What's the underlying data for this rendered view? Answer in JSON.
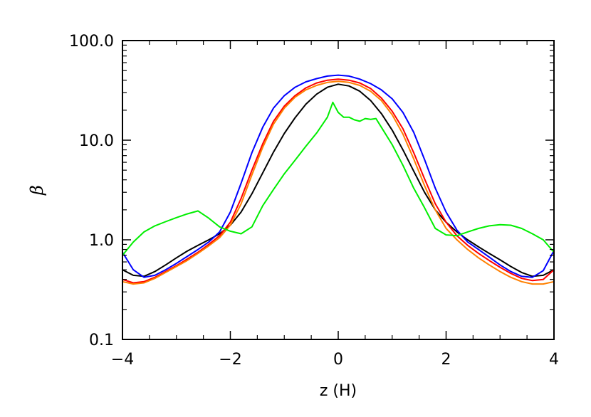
{
  "chart_data": {
    "type": "line",
    "xlabel": "z (H)",
    "ylabel": "β",
    "xlim": [
      -4,
      4
    ],
    "ylim": [
      0.1,
      100.0
    ],
    "y_scale": "log",
    "x_ticks": [
      -4,
      -2,
      0,
      2,
      4
    ],
    "x_tick_labels": [
      "−4",
      "−2",
      "0",
      "2",
      "4"
    ],
    "y_ticks": [
      0.1,
      1.0,
      10.0,
      100.0
    ],
    "y_tick_labels": [
      "0.1",
      "1.0",
      "10.0",
      "100.0"
    ],
    "grid": false,
    "series": [
      {
        "color": "#000000",
        "x": [
          -4.0,
          -3.8,
          -3.6,
          -3.4,
          -3.2,
          -3.0,
          -2.8,
          -2.6,
          -2.4,
          -2.2,
          -2.0,
          -1.8,
          -1.6,
          -1.4,
          -1.2,
          -1.0,
          -0.8,
          -0.6,
          -0.4,
          -0.2,
          0.0,
          0.2,
          0.4,
          0.6,
          0.8,
          1.0,
          1.2,
          1.4,
          1.6,
          1.8,
          2.0,
          2.2,
          2.4,
          2.6,
          2.8,
          3.0,
          3.2,
          3.4,
          3.6,
          3.8,
          4.0
        ],
        "y": [
          0.5,
          0.44,
          0.43,
          0.48,
          0.56,
          0.66,
          0.77,
          0.88,
          1.0,
          1.15,
          1.4,
          1.9,
          2.9,
          4.7,
          7.6,
          11.7,
          16.8,
          23.0,
          29.0,
          34.0,
          36.5,
          35.0,
          31.0,
          25.0,
          18.5,
          12.6,
          8.0,
          4.9,
          3.0,
          2.0,
          1.5,
          1.2,
          1.0,
          0.85,
          0.73,
          0.63,
          0.54,
          0.47,
          0.43,
          0.44,
          0.5
        ]
      },
      {
        "color": "#0000ff",
        "x": [
          -4.0,
          -3.8,
          -3.6,
          -3.4,
          -3.2,
          -3.0,
          -2.8,
          -2.6,
          -2.4,
          -2.2,
          -2.0,
          -1.8,
          -1.6,
          -1.4,
          -1.2,
          -1.0,
          -0.8,
          -0.6,
          -0.4,
          -0.2,
          0.0,
          0.2,
          0.4,
          0.6,
          0.8,
          1.0,
          1.2,
          1.4,
          1.6,
          1.8,
          2.0,
          2.2,
          2.4,
          2.6,
          2.8,
          3.0,
          3.2,
          3.4,
          3.6,
          3.8,
          4.0
        ],
        "y": [
          0.75,
          0.5,
          0.42,
          0.44,
          0.5,
          0.58,
          0.68,
          0.8,
          0.95,
          1.2,
          1.9,
          3.7,
          7.5,
          13.5,
          21.0,
          28.0,
          34.0,
          38.5,
          41.5,
          44.0,
          45.0,
          44.0,
          41.0,
          37.0,
          32.0,
          26.0,
          19.0,
          12.0,
          6.4,
          3.3,
          1.9,
          1.25,
          0.95,
          0.8,
          0.67,
          0.56,
          0.48,
          0.43,
          0.42,
          0.49,
          0.78
        ]
      },
      {
        "color": "#ff0000",
        "x": [
          -4.0,
          -3.8,
          -3.6,
          -3.4,
          -3.2,
          -3.0,
          -2.8,
          -2.6,
          -2.4,
          -2.2,
          -2.0,
          -1.8,
          -1.6,
          -1.4,
          -1.2,
          -1.0,
          -0.8,
          -0.6,
          -0.4,
          -0.2,
          0.0,
          0.2,
          0.4,
          0.6,
          0.8,
          1.0,
          1.2,
          1.4,
          1.6,
          1.8,
          2.0,
          2.2,
          2.4,
          2.6,
          2.8,
          3.0,
          3.2,
          3.4,
          3.6,
          3.8,
          4.0
        ],
        "y": [
          0.4,
          0.37,
          0.38,
          0.42,
          0.48,
          0.55,
          0.64,
          0.75,
          0.9,
          1.1,
          1.5,
          2.6,
          5.0,
          9.2,
          15.5,
          22.0,
          28.0,
          33.5,
          37.5,
          40.0,
          41.0,
          40.0,
          37.5,
          33.0,
          26.5,
          19.5,
          13.0,
          7.5,
          4.1,
          2.3,
          1.5,
          1.1,
          0.88,
          0.73,
          0.62,
          0.53,
          0.46,
          0.41,
          0.39,
          0.4,
          0.5
        ]
      },
      {
        "color": "#ff8000",
        "x": [
          -4.0,
          -3.8,
          -3.6,
          -3.4,
          -3.2,
          -3.0,
          -2.8,
          -2.6,
          -2.4,
          -2.2,
          -2.0,
          -1.8,
          -1.6,
          -1.4,
          -1.2,
          -1.0,
          -0.8,
          -0.6,
          -0.4,
          -0.2,
          0.0,
          0.2,
          0.4,
          0.6,
          0.8,
          1.0,
          1.2,
          1.4,
          1.6,
          1.8,
          2.0,
          2.2,
          2.4,
          2.6,
          2.8,
          3.0,
          3.2,
          3.4,
          3.6,
          3.8,
          4.0
        ],
        "y": [
          0.38,
          0.36,
          0.37,
          0.41,
          0.47,
          0.54,
          0.62,
          0.73,
          0.87,
          1.05,
          1.4,
          2.3,
          4.5,
          8.5,
          14.5,
          21.0,
          27.0,
          32.0,
          35.5,
          38.0,
          39.0,
          38.0,
          35.5,
          31.0,
          25.0,
          18.0,
          11.5,
          6.5,
          3.5,
          2.0,
          1.3,
          1.0,
          0.8,
          0.66,
          0.56,
          0.48,
          0.42,
          0.38,
          0.36,
          0.36,
          0.38
        ]
      },
      {
        "color": "#00ee00",
        "x": [
          -4.0,
          -3.8,
          -3.6,
          -3.4,
          -3.2,
          -3.0,
          -2.8,
          -2.6,
          -2.4,
          -2.2,
          -2.0,
          -1.8,
          -1.6,
          -1.4,
          -1.2,
          -1.0,
          -0.8,
          -0.6,
          -0.4,
          -0.2,
          -0.1,
          0.0,
          0.1,
          0.2,
          0.3,
          0.4,
          0.5,
          0.6,
          0.7,
          0.8,
          1.0,
          1.2,
          1.4,
          1.6,
          1.8,
          2.0,
          2.2,
          2.4,
          2.6,
          2.8,
          3.0,
          3.2,
          3.4,
          3.6,
          3.8,
          4.0
        ],
        "y": [
          0.7,
          0.95,
          1.2,
          1.38,
          1.52,
          1.67,
          1.82,
          1.95,
          1.65,
          1.35,
          1.22,
          1.15,
          1.35,
          2.2,
          3.2,
          4.6,
          6.3,
          8.7,
          11.8,
          17.0,
          24.0,
          19.0,
          17.0,
          17.0,
          16.0,
          15.5,
          16.5,
          16.2,
          16.5,
          13.5,
          9.0,
          5.6,
          3.3,
          2.1,
          1.3,
          1.12,
          1.1,
          1.2,
          1.3,
          1.38,
          1.42,
          1.4,
          1.3,
          1.15,
          1.0,
          0.75
        ]
      }
    ]
  }
}
